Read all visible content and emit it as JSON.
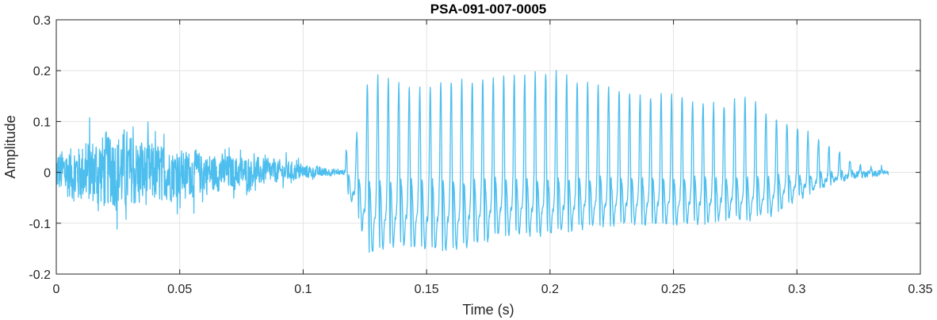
{
  "chart_data": {
    "type": "line",
    "title": "PSA-091-007-0005",
    "xlabel": "Time (s)",
    "ylabel": "Amplitude",
    "xlim": [
      0,
      0.35
    ],
    "ylim": [
      -0.2,
      0.3
    ],
    "xticks": [
      0,
      0.05,
      0.1,
      0.15,
      0.2,
      0.25,
      0.3,
      0.35
    ],
    "xtick_labels": [
      "0",
      "0.05",
      "0.1",
      "0.15",
      "0.2",
      "0.25",
      "0.3",
      "0.35"
    ],
    "yticks": [
      -0.2,
      -0.1,
      0,
      0.1,
      0.2,
      0.3
    ],
    "ytick_labels": [
      "-0.2",
      "-0.1",
      "0",
      "0.1",
      "0.2",
      "0.3"
    ],
    "grid": true,
    "line_color": "#4DBEEE",
    "series": [
      {
        "x_start": 0,
        "x_end": 0.337,
        "sample_rate_hz": 8000,
        "segments": [
          {
            "kind": "noise",
            "t": [
              0.0,
              0.005,
              0.015,
              0.025,
              0.035,
              0.05,
              0.07,
              0.09,
              0.105,
              0.115
            ],
            "peak": [
              0.09,
              0.1,
              0.14,
              0.18,
              0.13,
              0.09,
              0.07,
              0.05,
              0.025,
              0.01
            ],
            "trough": [
              -0.08,
              -0.11,
              -0.14,
              -0.15,
              -0.14,
              -0.1,
              -0.07,
              -0.04,
              -0.02,
              -0.01
            ]
          },
          {
            "kind": "voiced",
            "start": 0.117,
            "end": 0.337,
            "period": 0.00425,
            "t": [
              0.117,
              0.122,
              0.127,
              0.13,
              0.14,
              0.15,
              0.16,
              0.17,
              0.18,
              0.19,
              0.2,
              0.21,
              0.22,
              0.23,
              0.24,
              0.25,
              0.26,
              0.27,
              0.28,
              0.29,
              0.3,
              0.31,
              0.315,
              0.32,
              0.325,
              0.337
            ],
            "peak": [
              0.04,
              0.08,
              0.2,
              0.19,
              0.17,
              0.16,
              0.18,
              0.18,
              0.19,
              0.19,
              0.2,
              0.18,
              0.17,
              0.16,
              0.15,
              0.15,
              0.14,
              0.13,
              0.15,
              0.11,
              0.09,
              0.06,
              0.05,
              0.03,
              0.012,
              0.007
            ],
            "trough": [
              -0.03,
              -0.08,
              -0.16,
              -0.15,
              -0.14,
              -0.15,
              -0.15,
              -0.14,
              -0.12,
              -0.12,
              -0.12,
              -0.11,
              -0.1,
              -0.1,
              -0.1,
              -0.1,
              -0.1,
              -0.09,
              -0.09,
              -0.08,
              -0.05,
              -0.03,
              -0.02,
              -0.012,
              -0.006,
              -0.002
            ]
          }
        ]
      }
    ]
  }
}
